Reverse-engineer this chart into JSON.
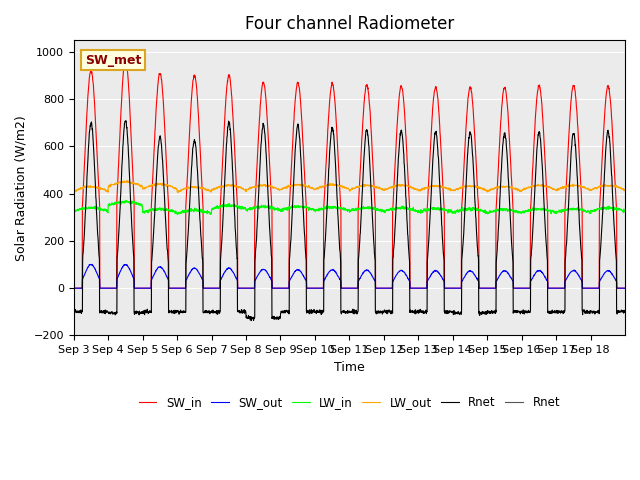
{
  "title": "Four channel Radiometer",
  "xlabel": "Time",
  "ylabel": "Solar Radiation (W/m2)",
  "ylim": [
    -200,
    1050
  ],
  "n_days": 16,
  "xtick_labels": [
    "Sep 3",
    "Sep 4",
    "Sep 5",
    "Sep 6",
    "Sep 7",
    "Sep 8",
    "Sep 9",
    "Sep 10",
    "Sep 11",
    "Sep 12",
    "Sep 13",
    "Sep 14",
    "Sep 15",
    "Sep 16",
    "Sep 17",
    "Sep 18"
  ],
  "legend_entries": [
    "SW_in",
    "SW_out",
    "LW_in",
    "LW_out",
    "Rnet",
    "Rnet"
  ],
  "legend_colors": [
    "red",
    "blue",
    "lime",
    "orange",
    "black",
    "#555555"
  ],
  "annotation_text": "SW_met",
  "annotation_color": "darkred",
  "annotation_bg": "lightyellow",
  "SW_in_peak": [
    920,
    970,
    910,
    900,
    900,
    870,
    870,
    865,
    860,
    855,
    850,
    848,
    850,
    858,
    860,
    855
  ],
  "SW_out_peak": [
    100,
    100,
    90,
    85,
    85,
    80,
    78,
    78,
    76,
    75,
    74,
    73,
    74,
    75,
    75,
    74
  ],
  "LW_in_base": [
    325,
    350,
    320,
    315,
    335,
    330,
    330,
    328,
    325,
    325,
    322,
    320,
    318,
    320,
    320,
    325
  ],
  "LW_out_base": [
    410,
    430,
    420,
    408,
    415,
    415,
    418,
    418,
    415,
    415,
    412,
    412,
    410,
    415,
    415,
    415
  ],
  "Rnet_peak": [
    700,
    710,
    640,
    625,
    700,
    690,
    690,
    680,
    670,
    665,
    660,
    660,
    655,
    660,
    660,
    665
  ],
  "Rnet_night": [
    -100,
    -105,
    -100,
    -100,
    -100,
    -125,
    -100,
    -100,
    -100,
    -100,
    -100,
    -105,
    -100,
    -100,
    -100,
    -100
  ],
  "plot_bg": "#ebebeb",
  "title_fontsize": 12
}
